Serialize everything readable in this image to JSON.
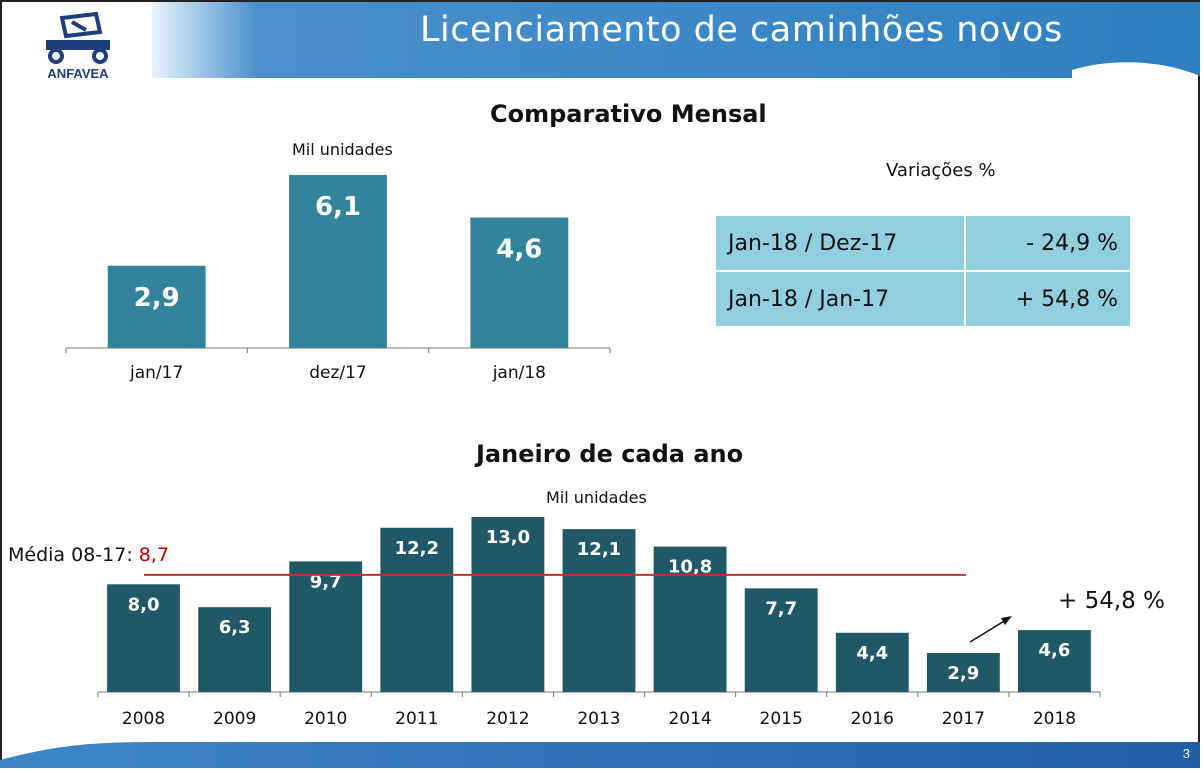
{
  "header": {
    "title": "Licenciamento de caminhões novos",
    "logo_text": "ANFAVEA"
  },
  "page_number": "3",
  "monthly": {
    "section_title": "Comparativo Mensal",
    "unit": "Mil unidades"
  },
  "variations": {
    "title": "Variações %",
    "rows": [
      {
        "label": "Jan-18 / Dez-17",
        "value": "- 24,9 %"
      },
      {
        "label": "Jan-18 / Jan-17",
        "value": "+ 54,8 %"
      }
    ]
  },
  "yearly": {
    "section_title": "Janeiro de cada ano",
    "unit": "Mil unidades",
    "average_label": "Média 08-17:",
    "average_value": "8,7",
    "variation_note": "+ 54,8 %"
  },
  "colors": {
    "banner": "#2e7fc0",
    "monthly_bar": "#31849b",
    "yearly_bar": "#215867",
    "average_line": "#c0302e",
    "table_bg": "#91cfe0"
  },
  "chart_data": [
    {
      "type": "bar",
      "title": "Comparativo Mensal",
      "ylabel": "Mil unidades",
      "categories": [
        "jan/17",
        "dez/17",
        "jan/18"
      ],
      "values": [
        2.9,
        6.1,
        4.6
      ],
      "labels": [
        "2,9",
        "6,1",
        "4,6"
      ],
      "ylim": [
        0,
        6.1
      ],
      "grid": false,
      "legend": "none"
    },
    {
      "type": "bar",
      "title": "Janeiro de cada ano",
      "ylabel": "Mil unidades",
      "categories": [
        "2008",
        "2009",
        "2010",
        "2011",
        "2012",
        "2013",
        "2014",
        "2015",
        "2016",
        "2017",
        "2018"
      ],
      "values": [
        8.0,
        6.3,
        9.7,
        12.2,
        13.0,
        12.1,
        10.8,
        7.7,
        4.4,
        2.9,
        4.6
      ],
      "labels": [
        "8,0",
        "6,3",
        "9,7",
        "12,2",
        "13,0",
        "12,1",
        "10,8",
        "7,7",
        "4,4",
        "2,9",
        "4,6"
      ],
      "average": 8.7,
      "ylim": [
        0,
        13.0
      ],
      "grid": false,
      "legend": "none"
    }
  ]
}
